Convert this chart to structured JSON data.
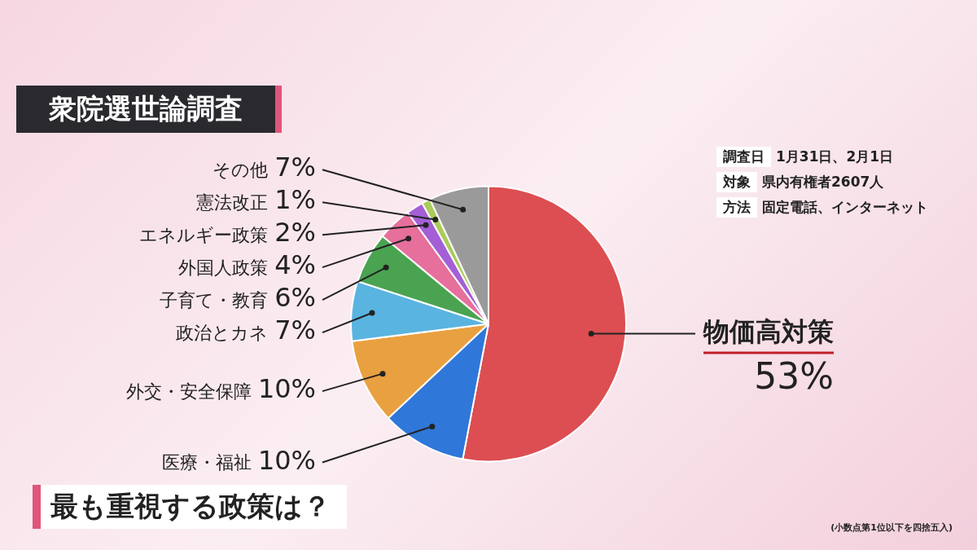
{
  "chart_data": {
    "type": "pie",
    "title": "衆院選世論調査",
    "subtitle": "最も重視する政策は？",
    "categories": [
      "物価高対策",
      "医療・福祉",
      "外交・安全保障",
      "政治とカネ",
      "子育て・教育",
      "外国人政策",
      "エネルギー政策",
      "憲法改正",
      "その他"
    ],
    "values": [
      53,
      10,
      10,
      7,
      6,
      4,
      2,
      1,
      7
    ],
    "colors": [
      "#dc4e52",
      "#2f77d9",
      "#e9a040",
      "#5ab4e0",
      "#4aa351",
      "#e66f9c",
      "#a45fd6",
      "#a9cc5a",
      "#9a9a9a"
    ],
    "value_labels": [
      "53%",
      "10%",
      "10%",
      "7%",
      "6%",
      "4%",
      "2%",
      "1%",
      "7%"
    ],
    "legend": false,
    "annotations": [
      "調査日 1月31日、2月1日",
      "対象 県内有権者2607人",
      "方法 固定電話、インターネット",
      "(小数点第1位以下を四捨五入)"
    ]
  }
}
